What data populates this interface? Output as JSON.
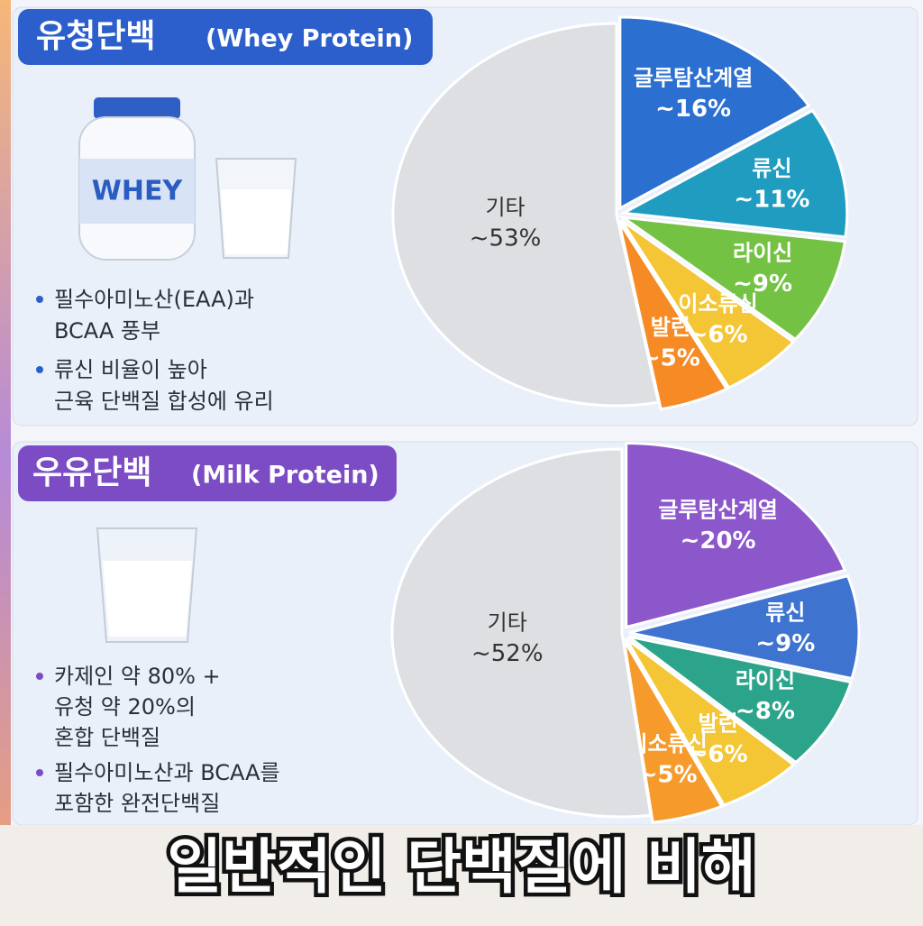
{
  "panels": [
    {
      "label": "WHEY",
      "bullets": [
        [
          "필수아미노산(EAA)과",
          "BCAA 풍부"
        ],
        [
          "류신 비율이 높아",
          "근육 단백질 합성에 유리"
        ]
      ]
    },
    {
      "bullets": [
        [
          "카제인 약 80% +",
          "유청 약 20%의",
          "혼합 단백질"
        ],
        [
          "필수아미노산과 BCAA를",
          "포함한 완전단백질"
        ]
      ]
    }
  ],
  "chart_data": [
    {
      "type": "pie",
      "title": "유청단백",
      "subtitle": "(Whey Protein)",
      "header_color": "#2c5fcb",
      "categories": [
        "글루탐산계열",
        "류신",
        "라이신",
        "이소류신",
        "발린",
        "기타"
      ],
      "values": [
        16,
        11,
        9,
        6,
        5,
        53
      ],
      "value_labels": [
        "~16%",
        "~11%",
        "~9%",
        "~6%",
        "~5%",
        "~53%"
      ],
      "colors": [
        "#2b6fd0",
        "#1f9cc0",
        "#74c244",
        "#f4c534",
        "#f68b26",
        "#dedfe2"
      ]
    },
    {
      "type": "pie",
      "title": "우유단백",
      "subtitle": "(Milk Protein)",
      "header_color": "#7b4cc4",
      "categories": [
        "글루탐산계열",
        "류신",
        "라이신",
        "발린",
        "이소류신",
        "기타"
      ],
      "values": [
        20,
        9,
        8,
        6,
        5,
        52
      ],
      "value_labels": [
        "~20%",
        "~9%",
        "~8%",
        "~6%",
        "~5%",
        "~52%"
      ],
      "colors": [
        "#8c57ca",
        "#3f73d0",
        "#2ba48b",
        "#f4c534",
        "#f69a2b",
        "#dedfe2"
      ]
    }
  ],
  "caption": "일반적인 단백질에 비해"
}
